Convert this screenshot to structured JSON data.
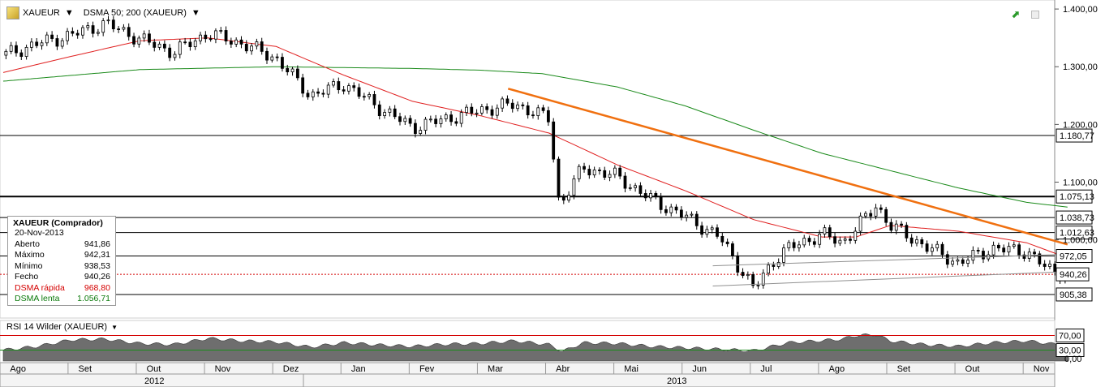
{
  "toolbar": {
    "symbol": "XAUEUR",
    "indicator": "DSMA 50; 200 (XAUEUR)"
  },
  "infobox": {
    "title": "XAUEUR (Comprador)",
    "date": "20-Nov-2013",
    "rows": [
      {
        "label": "Aberto",
        "value": "941,86"
      },
      {
        "label": "Máximo",
        "value": "942,31"
      },
      {
        "label": "Mínimo",
        "value": "938,53"
      },
      {
        "label": "Fecho",
        "value": "940,26"
      },
      {
        "label": "DSMA rápida",
        "value": "968,80"
      },
      {
        "label": "DSMA lenta",
        "value": "1.056,71"
      }
    ]
  },
  "rsi": {
    "label": "RSI 14 Wilder (XAUEUR)",
    "levels": [
      70,
      30
    ],
    "level_labels": [
      "70,00",
      "30,00"
    ],
    "axis_labels": [
      "0,00"
    ]
  },
  "colors": {
    "candle": "#000000",
    "fast_ma": "#e02020",
    "slow_ma": "#1a8a1a",
    "trendline": "#f07010",
    "support": "#909090",
    "rsi_fill": "#6e6e6e"
  },
  "chart_data": {
    "type": "line",
    "title": "",
    "y_axis_ticks": [
      1400,
      1300,
      1200,
      1100,
      1000
    ],
    "y_axis_tick_labels": [
      "1.400,00",
      "1.300,00",
      "1.200,00",
      "1.100,00",
      "1.000,00"
    ],
    "ylim": [
      880,
      1410
    ],
    "horizontal_levels": [
      {
        "value": 1180.77,
        "label": "1.180,77"
      },
      {
        "value": 1075.13,
        "label": "1.075,13"
      },
      {
        "value": 1038.73,
        "label": "1.038,73"
      },
      {
        "value": 1012.63,
        "label": "1.012,63"
      },
      {
        "value": 972.05,
        "label": "972,05"
      },
      {
        "value": 905.38,
        "label": "905,38"
      }
    ],
    "last_price": {
      "value": 940.26,
      "label": "940,26"
    },
    "x_months": [
      "Ago",
      "Set",
      "Out",
      "Nov",
      "Dez",
      "Jan",
      "Fev",
      "Mar",
      "Abr",
      "Mai",
      "Jun",
      "Jul",
      "Ago",
      "Set",
      "Out",
      "Nov"
    ],
    "x_years": [
      "2012",
      "2013"
    ],
    "series": [
      {
        "name": "XAUEUR",
        "kind": "close",
        "x": [
          0,
          0.5,
          1,
          1.5,
          2,
          2.5,
          3,
          3.5,
          4,
          4.5,
          5,
          5.5,
          6,
          6.5,
          7,
          7.5,
          8,
          8.15,
          8.5,
          9,
          9.5,
          10,
          10.5,
          11,
          11.3,
          11.5,
          12,
          12.3,
          12.5,
          12.8,
          13,
          13.5,
          14,
          14.5,
          15,
          15.3,
          15.6
        ],
        "values": [
          1320,
          1340,
          1355,
          1375,
          1348,
          1325,
          1358,
          1340,
          1315,
          1250,
          1270,
          1230,
          1195,
          1210,
          1225,
          1235,
          1210,
          1060,
          1125,
          1110,
          1070,
          1040,
          1005,
          915,
          965,
          985,
          1010,
          995,
          1020,
          1060,
          1025,
          990,
          960,
          985,
          980,
          950,
          940.26
        ]
      },
      {
        "name": "DSMA rápida",
        "kind": "ma",
        "x": [
          0,
          1,
          2,
          3,
          4,
          5,
          6,
          7,
          8,
          9,
          10,
          11,
          12,
          12.5,
          13,
          14,
          15,
          15.6
        ],
        "values": [
          1290,
          1318,
          1345,
          1350,
          1335,
          1285,
          1240,
          1215,
          1185,
          1130,
          1085,
          1035,
          1005,
          1005,
          1025,
          1015,
          995,
          968.8
        ]
      },
      {
        "name": "DSMA lenta",
        "kind": "ma",
        "x": [
          0,
          2,
          4,
          6,
          7,
          7.9,
          9,
          10,
          11,
          12,
          13,
          14,
          15,
          15.6
        ],
        "values": [
          1275,
          1295,
          1300,
          1297,
          1294,
          1288,
          1265,
          1232,
          1190,
          1150,
          1120,
          1090,
          1065,
          1056.71
        ]
      }
    ],
    "trendlines": [
      {
        "from": [
          7.4,
          1262
        ],
        "to": [
          15.6,
          992
        ]
      },
      {
        "from": [
          10.4,
          955
        ],
        "to": [
          15.6,
          975
        ]
      },
      {
        "from": [
          10.4,
          920
        ],
        "to": [
          15.6,
          945
        ]
      }
    ],
    "rsi_values_x": [
      0,
      0.5,
      1,
      1.5,
      2,
      2.5,
      3,
      3.5,
      4,
      4.5,
      5,
      5.5,
      6,
      6.5,
      7,
      7.5,
      8,
      8.2,
      8.5,
      9,
      9.5,
      10,
      10.5,
      11,
      11.5,
      12,
      12.3,
      12.5,
      12.8,
      13,
      13.5,
      14,
      14.5,
      15,
      15.6
    ],
    "rsi_values": [
      30,
      40,
      58,
      60,
      48,
      45,
      62,
      55,
      52,
      38,
      50,
      44,
      40,
      46,
      48,
      55,
      45,
      26,
      50,
      48,
      40,
      36,
      32,
      28,
      50,
      56,
      60,
      70,
      72,
      55,
      45,
      40,
      50,
      55,
      42
    ]
  }
}
